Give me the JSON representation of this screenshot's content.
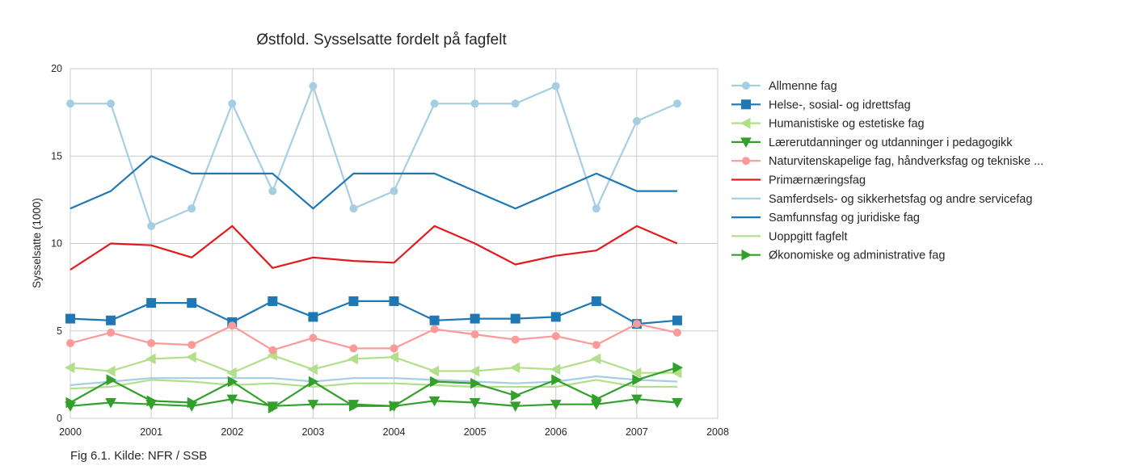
{
  "chart_data": {
    "type": "line",
    "title": "Østfold. Sysselsatte fordelt på fagfelt",
    "ylabel": "Sysselsatte (1000)",
    "xlabel": "",
    "xlim": [
      2000,
      2008
    ],
    "ylim": [
      0,
      20
    ],
    "x_ticks": [
      "2000",
      "2001",
      "2002",
      "2003",
      "2004",
      "2005",
      "2006",
      "2007",
      "2008"
    ],
    "y_ticks": [
      "0",
      "5",
      "10",
      "15",
      "20"
    ],
    "grid": true,
    "legend_position": "right-outside",
    "x": [
      2000.0,
      2000.5,
      2001.0,
      2001.5,
      2002.0,
      2002.5,
      2003.0,
      2003.5,
      2004.0,
      2004.5,
      2005.0,
      2005.5,
      2006.0,
      2006.5,
      2007.0,
      2007.5
    ],
    "series": [
      {
        "name": "Allmenne fag",
        "color": "#a6cee3",
        "marker": "circle",
        "values": [
          18,
          18,
          11,
          12,
          18,
          13,
          19,
          12,
          13,
          18,
          18,
          18,
          19,
          12,
          17,
          18
        ]
      },
      {
        "name": "Helse-, sosial- og idrettsfag",
        "color": "#1f78b4",
        "marker": "square",
        "values": [
          5.7,
          5.6,
          6.6,
          6.6,
          5.5,
          6.7,
          5.8,
          6.7,
          6.7,
          5.6,
          5.7,
          5.7,
          5.8,
          6.7,
          5.4,
          5.6
        ]
      },
      {
        "name": "Humanistiske og estetiske fag",
        "color": "#b2df8a",
        "marker": "triangle-left",
        "values": [
          2.9,
          2.7,
          3.4,
          3.5,
          2.6,
          3.6,
          2.8,
          3.4,
          3.5,
          2.7,
          2.7,
          2.9,
          2.8,
          3.4,
          2.6,
          2.6
        ]
      },
      {
        "name": "Lærerutdanninger og utdanninger i pedagogikk",
        "color": "#33a02c",
        "marker": "triangle-down",
        "values": [
          0.7,
          0.9,
          0.8,
          0.7,
          1.1,
          0.7,
          0.8,
          0.8,
          0.7,
          1.0,
          0.9,
          0.7,
          0.8,
          0.8,
          1.1,
          0.9
        ]
      },
      {
        "name": "Naturvitenskapelige fag, håndverksfag og tekniske ...",
        "color": "#fb9a99",
        "marker": "circle",
        "values": [
          4.3,
          4.9,
          4.3,
          4.2,
          5.3,
          3.9,
          4.6,
          4.0,
          4.0,
          5.1,
          4.8,
          4.5,
          4.7,
          4.2,
          5.4,
          4.9
        ]
      },
      {
        "name": "Primærnæringsfag",
        "color": "#e31a1c",
        "marker": "none",
        "values": [
          8.5,
          10.0,
          9.9,
          9.2,
          11.0,
          8.6,
          9.2,
          9.0,
          8.9,
          11.0,
          10.0,
          8.8,
          9.3,
          9.6,
          11.0,
          10.0
        ]
      },
      {
        "name": "Samferdsels- og sikkerhetsfag og andre servicefag",
        "color": "#a6cee3",
        "marker": "none",
        "values": [
          1.9,
          2.1,
          2.3,
          2.3,
          2.3,
          2.3,
          2.1,
          2.3,
          2.3,
          2.2,
          2.1,
          2.0,
          2.1,
          2.4,
          2.2,
          2.1
        ]
      },
      {
        "name": "Samfunnsfag og juridiske fag",
        "color": "#1f78b4",
        "marker": "none",
        "values": [
          12,
          13,
          15,
          14,
          14,
          14,
          12,
          14,
          14,
          14,
          13,
          12,
          13,
          14,
          13,
          13
        ]
      },
      {
        "name": "Uoppgitt fagfelt",
        "color": "#b2df8a",
        "marker": "none",
        "values": [
          1.7,
          1.8,
          2.2,
          2.1,
          1.9,
          2.0,
          1.8,
          2.0,
          2.0,
          1.9,
          1.8,
          1.8,
          1.8,
          2.2,
          1.8,
          1.8
        ]
      },
      {
        "name": "Økonomiske og administrative fag",
        "color": "#33a02c",
        "marker": "triangle-right",
        "values": [
          0.9,
          2.2,
          1.0,
          0.9,
          2.1,
          0.6,
          2.1,
          0.7,
          0.7,
          2.1,
          2.0,
          1.3,
          2.2,
          1.1,
          2.2,
          2.9
        ]
      }
    ]
  },
  "caption": "Fig 6.1. Kilde: NFR / SSB"
}
